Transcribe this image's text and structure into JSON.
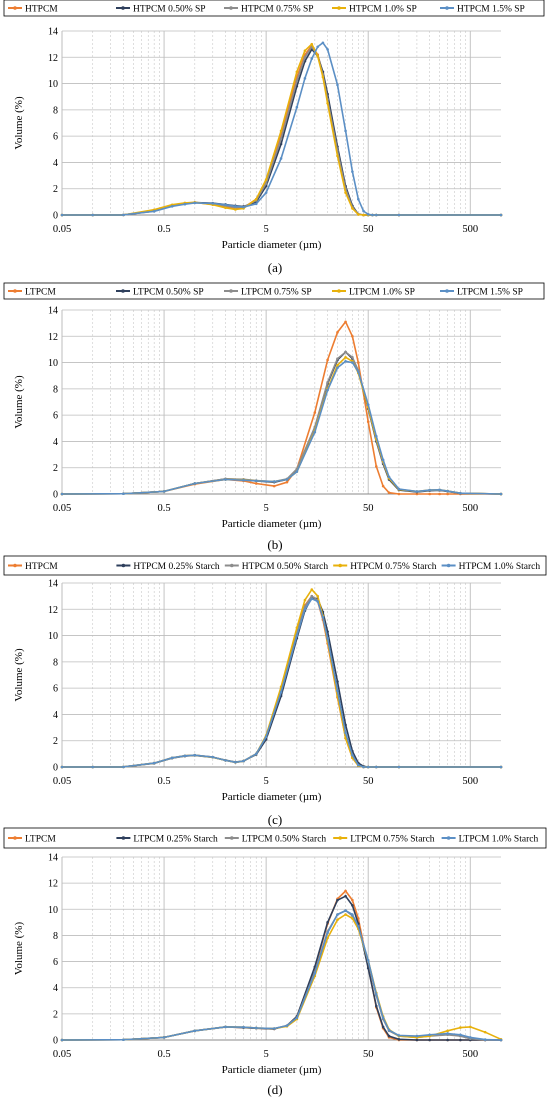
{
  "colors": {
    "orange": "#ed7d31",
    "navy": "#2e3f5c",
    "gray": "#8c8c8c",
    "gold": "#e8b10b",
    "blue": "#5b8fc5"
  },
  "chart_data": [
    {
      "type": "line",
      "label": "(a)",
      "xlabel": "Particle diameter (µm)",
      "ylabel": "Volume (%)",
      "xscale": "log",
      "xlim": [
        0.05,
        1000
      ],
      "xticks": [
        "0.05",
        "0.5",
        "5",
        "50",
        "500"
      ],
      "ylim": [
        0,
        14
      ],
      "yticks": [
        0,
        2,
        4,
        6,
        8,
        10,
        12,
        14
      ],
      "grid": true,
      "legend_position": "top",
      "x": [
        0.05,
        0.1,
        0.2,
        0.4,
        0.6,
        0.8,
        1.0,
        1.5,
        2.0,
        2.5,
        3.0,
        4.0,
        5.0,
        7.0,
        10.0,
        12.0,
        14.0,
        16.0,
        18.0,
        20.0,
        25.0,
        30.0,
        35.0,
        40.0,
        45.0,
        50.0,
        55.0,
        60.0,
        100.0,
        1000.0
      ],
      "series": [
        {
          "name": "HTPCM",
          "color_key": "orange",
          "values": [
            0,
            0,
            0.01,
            0.35,
            0.75,
            0.9,
            0.95,
            0.8,
            0.62,
            0.5,
            0.55,
            1.2,
            2.6,
            6.1,
            10.5,
            12.2,
            12.9,
            12.2,
            10.8,
            8.9,
            4.8,
            1.9,
            0.6,
            0.05,
            0,
            0,
            0,
            0,
            0,
            0
          ]
        },
        {
          "name": "HTPCM 0.50% SP",
          "color_key": "navy",
          "values": [
            0,
            0,
            0.01,
            0.3,
            0.7,
            0.85,
            0.95,
            0.9,
            0.8,
            0.7,
            0.65,
            1.0,
            2.2,
            5.4,
            9.8,
            11.7,
            12.6,
            12.1,
            10.9,
            9.2,
            5.2,
            2.2,
            0.7,
            0.06,
            0,
            0,
            0,
            0,
            0,
            0
          ]
        },
        {
          "name": "HTPCM 0.75% SP",
          "color_key": "gray",
          "values": [
            0,
            0,
            0.01,
            0.32,
            0.72,
            0.87,
            0.95,
            0.85,
            0.7,
            0.58,
            0.6,
            1.1,
            2.4,
            5.8,
            10.2,
            12.0,
            12.8,
            12.1,
            10.7,
            8.8,
            4.9,
            2.0,
            0.6,
            0.05,
            0,
            0,
            0,
            0,
            0,
            0
          ]
        },
        {
          "name": "HTPCM 1.0% SP",
          "color_key": "gold",
          "values": [
            0,
            0,
            0.01,
            0.4,
            0.78,
            0.92,
            0.97,
            0.78,
            0.55,
            0.42,
            0.5,
            1.2,
            2.7,
            6.4,
            10.9,
            12.5,
            13.0,
            12.1,
            10.5,
            8.5,
            4.5,
            1.7,
            0.5,
            0.04,
            0,
            0,
            0,
            0,
            0,
            0
          ]
        },
        {
          "name": "HTPCM 1.5% SP",
          "color_key": "blue",
          "values": [
            0,
            0,
            0.01,
            0.28,
            0.66,
            0.82,
            0.92,
            0.88,
            0.78,
            0.66,
            0.6,
            0.85,
            1.7,
            4.3,
            8.2,
            10.4,
            11.9,
            12.8,
            13.1,
            12.6,
            9.9,
            6.4,
            3.3,
            1.2,
            0.3,
            0.05,
            0,
            0,
            0,
            0
          ]
        }
      ]
    },
    {
      "type": "line",
      "label": "(b)",
      "xlabel": "Particle diameter (µm)",
      "ylabel": "Volume (%)",
      "xscale": "log",
      "xlim": [
        0.05,
        1000
      ],
      "xticks": [
        "0.05",
        "0.5",
        "5",
        "50",
        "500"
      ],
      "ylim": [
        0,
        14
      ],
      "yticks": [
        0,
        2,
        4,
        6,
        8,
        10,
        12,
        14
      ],
      "grid": true,
      "legend_position": "top",
      "x": [
        0.05,
        0.2,
        0.5,
        1.0,
        2.0,
        3.0,
        4.0,
        6.0,
        8.0,
        10.0,
        15.0,
        20.0,
        25.0,
        30.0,
        35.0,
        40.0,
        50.0,
        60.0,
        70.0,
        80.0,
        100.0,
        150.0,
        200.0,
        250.0,
        300.0,
        400.0,
        1000.0
      ],
      "series": [
        {
          "name": "LTPCM",
          "color_key": "orange",
          "values": [
            0,
            0.02,
            0.2,
            0.75,
            1.1,
            1.0,
            0.8,
            0.6,
            0.9,
            1.9,
            6.2,
            10.2,
            12.3,
            13.1,
            12.0,
            10.0,
            5.5,
            2.1,
            0.6,
            0.1,
            0,
            0,
            0,
            0,
            0,
            0,
            0
          ]
        },
        {
          "name": "LTPCM 0.50% SP",
          "color_key": "navy",
          "values": [
            0,
            0.02,
            0.2,
            0.8,
            1.15,
            1.1,
            1.0,
            0.9,
            1.1,
            1.8,
            5.0,
            8.4,
            10.2,
            10.8,
            10.3,
            9.3,
            6.5,
            4.0,
            2.3,
            1.1,
            0.3,
            0.15,
            0.25,
            0.28,
            0.2,
            0.05,
            0
          ]
        },
        {
          "name": "LTPCM 0.75% SP",
          "color_key": "gray",
          "values": [
            0,
            0.02,
            0.2,
            0.8,
            1.15,
            1.12,
            1.02,
            0.95,
            1.15,
            1.9,
            5.1,
            8.5,
            10.3,
            10.8,
            10.4,
            9.4,
            6.6,
            4.1,
            2.4,
            1.2,
            0.35,
            0.18,
            0.28,
            0.3,
            0.22,
            0.06,
            0
          ]
        },
        {
          "name": "LTPCM 1.0% SP",
          "color_key": "gold",
          "values": [
            0,
            0.02,
            0.2,
            0.8,
            1.1,
            1.08,
            1.0,
            0.95,
            1.1,
            1.7,
            4.8,
            8.0,
            9.8,
            10.4,
            10.1,
            9.2,
            6.6,
            4.2,
            2.5,
            1.2,
            0.35,
            0.2,
            0.3,
            0.32,
            0.22,
            0.06,
            0
          ]
        },
        {
          "name": "LTPCM 1.5% SP",
          "color_key": "blue",
          "values": [
            0,
            0.02,
            0.2,
            0.8,
            1.1,
            1.05,
            1.0,
            0.95,
            1.1,
            1.7,
            4.7,
            7.9,
            9.6,
            10.1,
            10.0,
            9.3,
            6.8,
            4.4,
            2.6,
            1.3,
            0.38,
            0.2,
            0.3,
            0.32,
            0.22,
            0.06,
            0
          ]
        }
      ]
    },
    {
      "type": "line",
      "label": "(c)",
      "xlabel": "Particle diameter (µm)",
      "ylabel": "Volume (%)",
      "xscale": "log",
      "xlim": [
        0.05,
        1000
      ],
      "xticks": [
        "0.05",
        "0.5",
        "5",
        "50",
        "500"
      ],
      "ylim": [
        0,
        14
      ],
      "yticks": [
        0,
        2,
        4,
        6,
        8,
        10,
        12,
        14
      ],
      "grid": true,
      "legend_position": "top",
      "x": [
        0.05,
        0.1,
        0.2,
        0.4,
        0.6,
        0.8,
        1.0,
        1.5,
        2.0,
        2.5,
        3.0,
        4.0,
        5.0,
        7.0,
        10.0,
        12.0,
        14.0,
        16.0,
        18.0,
        20.0,
        25.0,
        30.0,
        35.0,
        40.0,
        45.0,
        50.0,
        60.0,
        100.0,
        1000.0
      ],
      "series": [
        {
          "name": "HTPCM",
          "color_key": "orange",
          "values": [
            0,
            0,
            0.01,
            0.3,
            0.7,
            0.85,
            0.9,
            0.75,
            0.5,
            0.35,
            0.45,
            1.0,
            2.3,
            5.9,
            10.3,
            12.3,
            13.0,
            12.6,
            11.2,
            9.4,
            5.3,
            2.2,
            0.7,
            0.1,
            0,
            0,
            0,
            0,
            0
          ]
        },
        {
          "name": "HTPCM 0.25% Starch",
          "color_key": "navy",
          "values": [
            0,
            0,
            0.01,
            0.28,
            0.68,
            0.83,
            0.88,
            0.74,
            0.52,
            0.38,
            0.45,
            0.95,
            2.1,
            5.4,
            9.8,
            11.9,
            12.9,
            12.8,
            11.8,
            10.3,
            6.5,
            3.2,
            1.2,
            0.3,
            0.05,
            0,
            0,
            0,
            0
          ]
        },
        {
          "name": "HTPCM 0.50% Starch",
          "color_key": "gray",
          "values": [
            0,
            0,
            0.01,
            0.3,
            0.7,
            0.85,
            0.9,
            0.75,
            0.5,
            0.36,
            0.45,
            1.0,
            2.3,
            5.8,
            10.2,
            12.2,
            13.0,
            12.7,
            11.4,
            9.7,
            5.6,
            2.4,
            0.8,
            0.12,
            0,
            0,
            0,
            0,
            0
          ]
        },
        {
          "name": "HTPCM 0.75% Starch",
          "color_key": "gold",
          "values": [
            0,
            0,
            0.01,
            0.3,
            0.7,
            0.85,
            0.9,
            0.74,
            0.5,
            0.35,
            0.45,
            1.0,
            2.4,
            6.1,
            10.6,
            12.7,
            13.5,
            13.0,
            11.5,
            9.6,
            5.4,
            2.2,
            0.7,
            0.1,
            0,
            0,
            0,
            0,
            0
          ]
        },
        {
          "name": "HTPCM 1.0% Starch",
          "color_key": "blue",
          "values": [
            0,
            0,
            0.01,
            0.3,
            0.7,
            0.85,
            0.9,
            0.75,
            0.5,
            0.36,
            0.45,
            1.0,
            2.3,
            5.7,
            10.0,
            12.0,
            12.8,
            12.6,
            11.4,
            9.8,
            5.8,
            2.6,
            0.9,
            0.15,
            0,
            0,
            0,
            0,
            0
          ]
        }
      ]
    },
    {
      "type": "line",
      "label": "(d)",
      "xlabel": "Particle diameter (µm)",
      "ylabel": "Volume (%)",
      "xscale": "log",
      "xlim": [
        0.05,
        1000
      ],
      "xticks": [
        "0.05",
        "0.5",
        "5",
        "50",
        "500"
      ],
      "ylim": [
        0,
        14
      ],
      "yticks": [
        0,
        2,
        4,
        6,
        8,
        10,
        12,
        14
      ],
      "grid": true,
      "legend_position": "top",
      "x": [
        0.05,
        0.2,
        0.5,
        1.0,
        2.0,
        3.0,
        4.0,
        6.0,
        8.0,
        10.0,
        15.0,
        20.0,
        25.0,
        30.0,
        35.0,
        40.0,
        50.0,
        60.0,
        70.0,
        80.0,
        100.0,
        150.0,
        200.0,
        300.0,
        400.0,
        500.0,
        700.0,
        1000.0
      ],
      "series": [
        {
          "name": "LTPCM",
          "color_key": "orange",
          "values": [
            0,
            0.02,
            0.2,
            0.7,
            1.0,
            0.95,
            0.9,
            0.85,
            1.1,
            1.8,
            5.5,
            8.9,
            10.8,
            11.4,
            10.7,
            9.3,
            5.6,
            2.5,
            0.9,
            0.2,
            0,
            0,
            0,
            0,
            0,
            0,
            0,
            0
          ]
        },
        {
          "name": "LTPCM 0.25% Starch",
          "color_key": "navy",
          "values": [
            0,
            0.02,
            0.2,
            0.7,
            1.0,
            0.95,
            0.9,
            0.85,
            1.1,
            1.8,
            5.6,
            9.0,
            10.7,
            11.0,
            10.3,
            8.9,
            5.5,
            2.6,
            1.0,
            0.3,
            0.05,
            0,
            0,
            0,
            0,
            0,
            0,
            0
          ]
        },
        {
          "name": "LTPCM 0.50% Starch",
          "color_key": "gray",
          "values": [
            0,
            0.02,
            0.2,
            0.7,
            1.0,
            0.98,
            0.92,
            0.88,
            1.1,
            1.7,
            5.2,
            8.3,
            9.6,
            9.9,
            9.5,
            8.6,
            6.0,
            3.4,
            1.6,
            0.7,
            0.3,
            0.2,
            0.3,
            0.4,
            0.3,
            0.1,
            0,
            0
          ]
        },
        {
          "name": "LTPCM 0.75% Starch",
          "color_key": "gold",
          "values": [
            0,
            0.02,
            0.2,
            0.7,
            1.0,
            0.98,
            0.92,
            0.88,
            1.05,
            1.6,
            4.9,
            7.8,
            9.2,
            9.6,
            9.3,
            8.5,
            6.1,
            3.6,
            1.8,
            0.8,
            0.3,
            0.2,
            0.3,
            0.7,
            0.95,
            1.0,
            0.6,
            0.05
          ]
        },
        {
          "name": "LTPCM 1.0% Starch",
          "color_key": "blue",
          "values": [
            0,
            0.02,
            0.2,
            0.7,
            1.0,
            0.98,
            0.92,
            0.88,
            1.1,
            1.7,
            5.1,
            8.2,
            9.6,
            9.9,
            9.6,
            8.7,
            6.1,
            3.5,
            1.7,
            0.75,
            0.35,
            0.3,
            0.4,
            0.5,
            0.4,
            0.2,
            0.03,
            0
          ]
        }
      ]
    }
  ]
}
